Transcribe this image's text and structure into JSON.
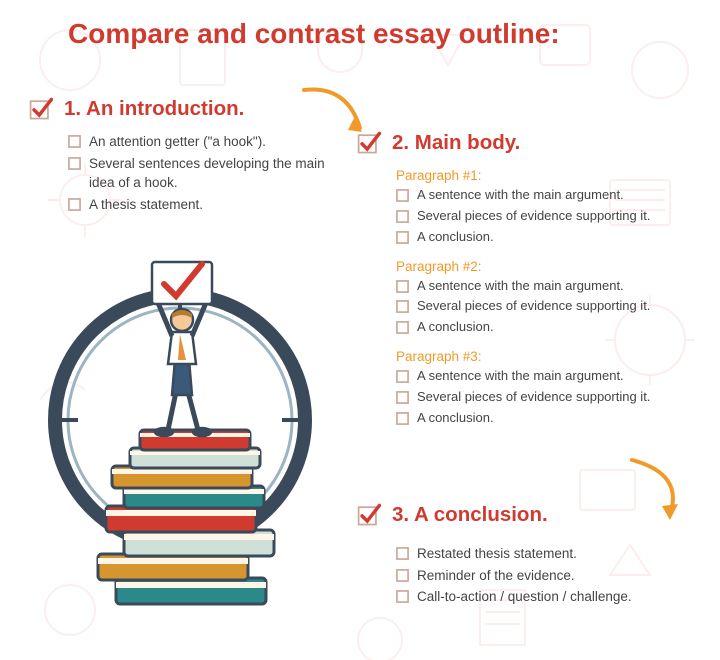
{
  "colors": {
    "accent": "#d13a2e",
    "highlight": "#f19a2a",
    "text": "#333333",
    "box": "#c9a89a",
    "bg_pattern": "#d8b0a8"
  },
  "title": "Compare and contrast essay outline:",
  "sections": {
    "intro": {
      "heading": "1. An introduction.",
      "items": [
        "An attention getter (\"a hook\").",
        "Several sentences developing the main idea of a hook.",
        "A thesis statement."
      ]
    },
    "body": {
      "heading": "2. Main body.",
      "paragraphs": [
        {
          "label": "Paragraph #1:",
          "items": [
            "A sentence with the main argument.",
            "Several pieces of evidence supporting it.",
            "A conclusion."
          ]
        },
        {
          "label": "Paragraph #2:",
          "items": [
            "A sentence with the main argument.",
            "Several pieces of evidence supporting it.",
            "A conclusion."
          ]
        },
        {
          "label": "Paragraph #3:",
          "items": [
            "A sentence with the main argument.",
            "Several pieces of evidence supporting it.",
            "A conclusion."
          ]
        }
      ]
    },
    "conclusion": {
      "heading": "3. A conclusion.",
      "items": [
        "Restated thesis statement.",
        "Reminder of the evidence.",
        "Call-to-action / question / challenge."
      ]
    }
  },
  "typography": {
    "title_fontsize": 28,
    "section_fontsize": 20.5,
    "item_fontsize": 13.5
  }
}
